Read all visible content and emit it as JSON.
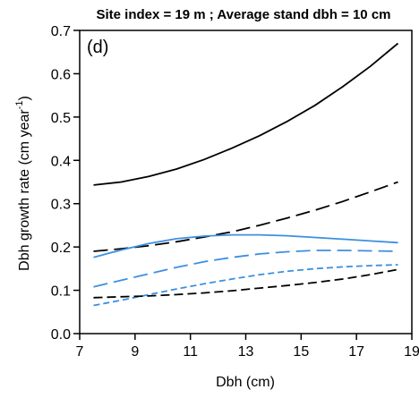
{
  "chart_data": {
    "type": "line",
    "title": "Site index = 19 m ; Average stand dbh = 10 cm",
    "panel_label": "(d)",
    "xlabel": "Dbh (cm)",
    "ylabel": {
      "main": "Dbh growth rate (cm year",
      "sup": "-1",
      "close": ")"
    },
    "xlim": [
      7,
      19
    ],
    "ylim": [
      0.0,
      0.7
    ],
    "x_ticks": [
      7,
      9,
      11,
      13,
      15,
      17,
      19
    ],
    "x_tick_labels": [
      "7",
      "9",
      "11",
      "13",
      "15",
      "17",
      "19"
    ],
    "y_ticks": [
      0.0,
      0.1,
      0.2,
      0.3,
      0.4,
      0.5,
      0.6,
      0.7
    ],
    "y_tick_labels": [
      "0.0",
      "0.1",
      "0.2",
      "0.3",
      "0.4",
      "0.5",
      "0.6",
      "0.7"
    ],
    "grid": false,
    "legend": "none",
    "series": [
      {
        "color": "#000000",
        "dash": "solid",
        "x": [
          7.5,
          8.5,
          9.5,
          10.5,
          11.5,
          12.5,
          13.5,
          14.5,
          15.5,
          16.5,
          17.5,
          18.5
        ],
        "values": [
          0.343,
          0.35,
          0.363,
          0.38,
          0.402,
          0.428,
          0.457,
          0.49,
          0.527,
          0.57,
          0.617,
          0.67
        ]
      },
      {
        "color": "#000000",
        "dash": "long",
        "x": [
          7.5,
          8.5,
          9.5,
          10.5,
          11.5,
          12.5,
          13.5,
          14.5,
          15.5,
          16.5,
          17.5,
          18.5
        ],
        "values": [
          0.19,
          0.196,
          0.203,
          0.212,
          0.223,
          0.235,
          0.25,
          0.267,
          0.285,
          0.305,
          0.327,
          0.35
        ]
      },
      {
        "color": "#3c8fe0",
        "dash": "solid",
        "x": [
          7.5,
          8.5,
          9.5,
          10.5,
          11.5,
          12.5,
          13.5,
          14.5,
          15.5,
          16.5,
          17.5,
          18.5
        ],
        "values": [
          0.176,
          0.193,
          0.208,
          0.219,
          0.225,
          0.228,
          0.228,
          0.226,
          0.222,
          0.218,
          0.214,
          0.21
        ]
      },
      {
        "color": "#3c8fe0",
        "dash": "long",
        "x": [
          7.5,
          8.5,
          9.5,
          10.5,
          11.5,
          12.5,
          13.5,
          14.5,
          15.5,
          16.5,
          17.5,
          18.5
        ],
        "values": [
          0.108,
          0.123,
          0.138,
          0.153,
          0.166,
          0.176,
          0.184,
          0.189,
          0.192,
          0.192,
          0.191,
          0.19
        ]
      },
      {
        "color": "#3c8fe0",
        "dash": "short",
        "x": [
          7.5,
          8.5,
          9.5,
          10.5,
          11.5,
          12.5,
          13.5,
          14.5,
          15.5,
          16.5,
          17.5,
          18.5
        ],
        "values": [
          0.065,
          0.077,
          0.09,
          0.103,
          0.115,
          0.126,
          0.136,
          0.144,
          0.15,
          0.154,
          0.157,
          0.159
        ]
      },
      {
        "color": "#000000",
        "dash": "medium",
        "x": [
          7.5,
          8.5,
          9.5,
          10.5,
          11.5,
          12.5,
          13.5,
          14.5,
          15.5,
          16.5,
          17.5,
          18.5
        ],
        "values": [
          0.083,
          0.085,
          0.087,
          0.09,
          0.094,
          0.099,
          0.105,
          0.111,
          0.118,
          0.126,
          0.136,
          0.148
        ]
      }
    ]
  }
}
